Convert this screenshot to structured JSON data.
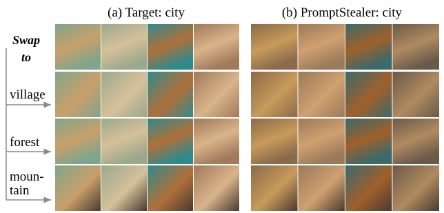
{
  "panels": [
    {
      "title": "(a) Target: city"
    },
    {
      "title": "(b) PromptStealer: city"
    }
  ],
  "swap_label": [
    "Swap",
    "to"
  ],
  "rows": [
    {
      "label": [
        "village"
      ]
    },
    {
      "label": [
        "forest"
      ]
    },
    {
      "label": [
        "moun-",
        "tain"
      ]
    }
  ]
}
